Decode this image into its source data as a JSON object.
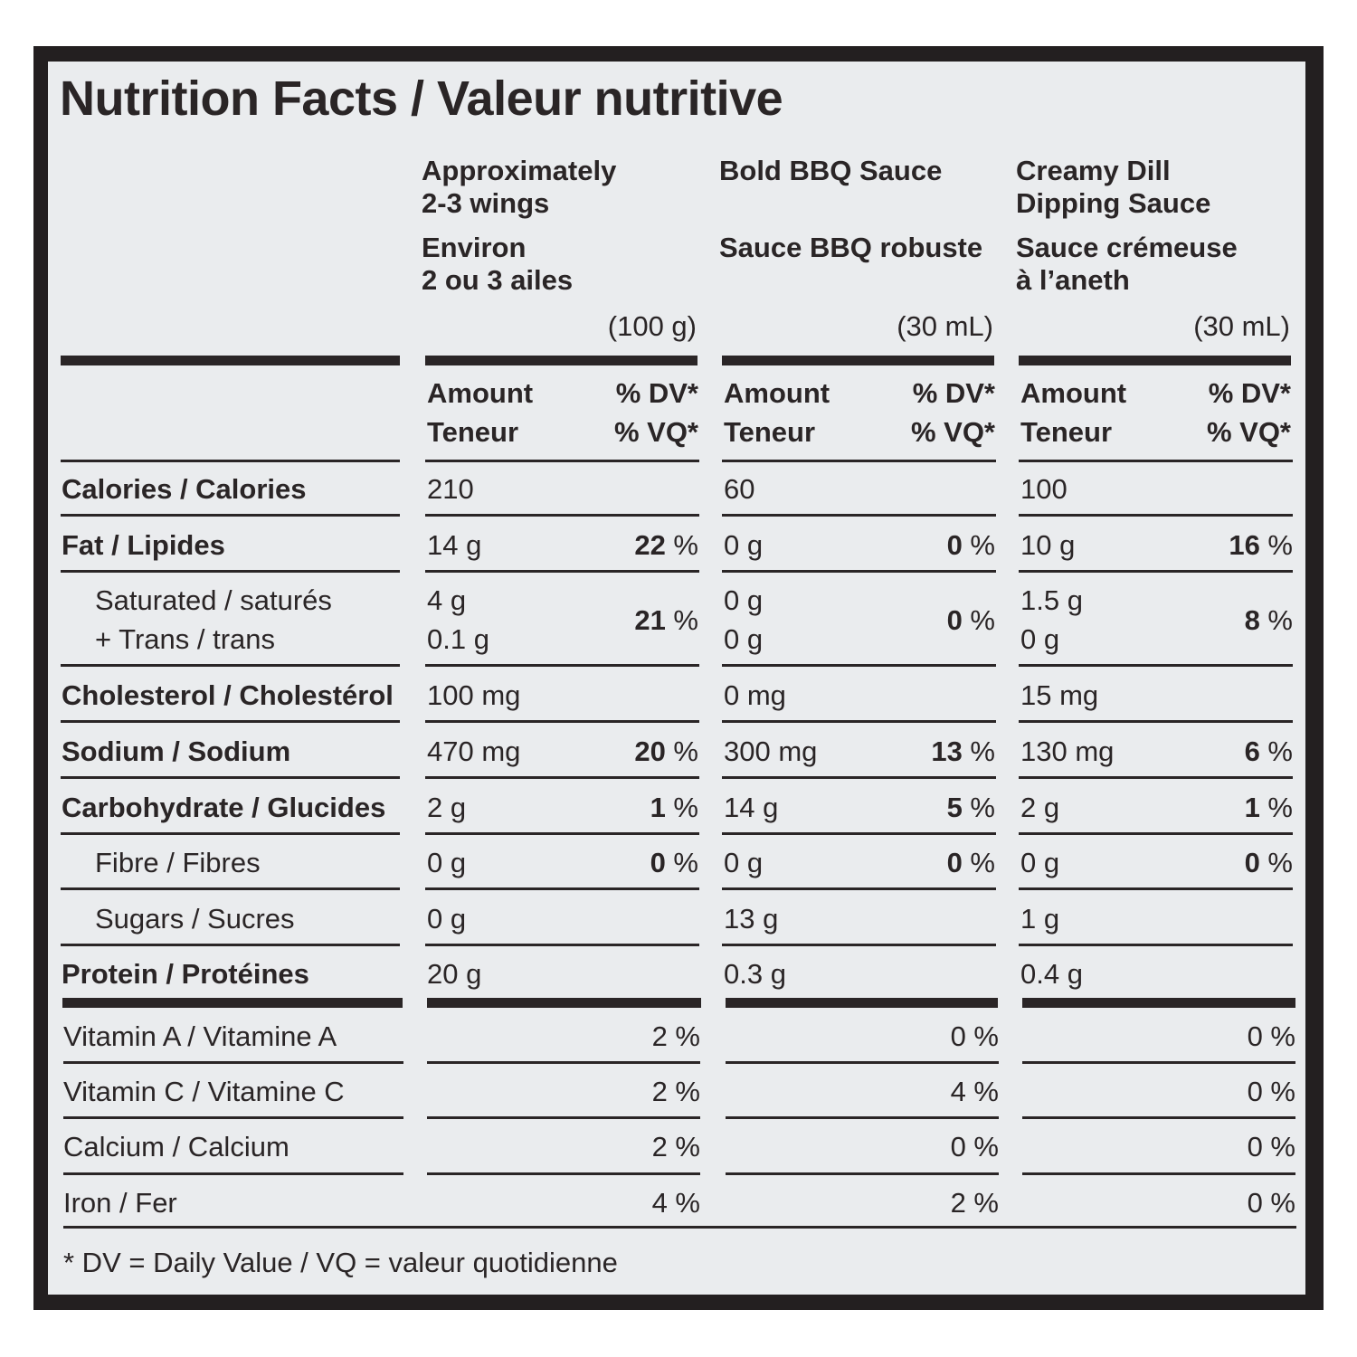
{
  "title": "Nutrition Facts / Valeur nutritive",
  "columns": [
    {
      "name_en": "Approximately\n2-3 wings",
      "name_fr": "Environ\n2 ou 3 ailes",
      "serving": "(100 g)"
    },
    {
      "name_en": "Bold BBQ Sauce",
      "name_fr": "Sauce BBQ robuste",
      "serving": "(30 mL)"
    },
    {
      "name_en": "Creamy Dill\nDipping Sauce",
      "name_fr": "Sauce crémeuse\nà l’aneth",
      "serving": "(30 mL)"
    }
  ],
  "header": {
    "amount": "Amount\nTeneur",
    "dv": "% DV*\n% VQ*"
  },
  "rows": [
    {
      "label": "Calories / Calories",
      "values": [
        {
          "amount": "210",
          "pct": ""
        },
        {
          "amount": "60",
          "pct": ""
        },
        {
          "amount": "100",
          "pct": ""
        }
      ]
    },
    {
      "label": "Fat / Lipides",
      "values": [
        {
          "amount": "14 g",
          "pct": "22"
        },
        {
          "amount": "0 g",
          "pct": "0"
        },
        {
          "amount": "10 g",
          "pct": "16"
        }
      ]
    },
    {
      "label": "Saturated / saturés\n+ Trans / trans",
      "values": [
        {
          "amount": "4 g\n0.1 g",
          "pct": "21"
        },
        {
          "amount": "0 g\n0 g",
          "pct": "0"
        },
        {
          "amount": "1.5 g\n0 g",
          "pct": "8"
        }
      ]
    },
    {
      "label": "Cholesterol / Cholestérol",
      "values": [
        {
          "amount": "100 mg",
          "pct": ""
        },
        {
          "amount": "0 mg",
          "pct": ""
        },
        {
          "amount": "15 mg",
          "pct": ""
        }
      ]
    },
    {
      "label": "Sodium / Sodium",
      "values": [
        {
          "amount": "470 mg",
          "pct": "20"
        },
        {
          "amount": "300 mg",
          "pct": "13"
        },
        {
          "amount": "130 mg",
          "pct": "6"
        }
      ]
    },
    {
      "label": "Carbohydrate / Glucides",
      "values": [
        {
          "amount": "2 g",
          "pct": "1"
        },
        {
          "amount": "14 g",
          "pct": "5"
        },
        {
          "amount": "2 g",
          "pct": "1"
        }
      ]
    },
    {
      "label": "Fibre / Fibres",
      "values": [
        {
          "amount": "0 g",
          "pct": "0"
        },
        {
          "amount": "0 g",
          "pct": "0"
        },
        {
          "amount": "0 g",
          "pct": "0"
        }
      ]
    },
    {
      "label": "Sugars / Sucres",
      "values": [
        {
          "amount": "0 g",
          "pct": ""
        },
        {
          "amount": "13 g",
          "pct": ""
        },
        {
          "amount": "1 g",
          "pct": ""
        }
      ]
    },
    {
      "label": "Protein / Protéines",
      "values": [
        {
          "amount": "20 g",
          "pct": ""
        },
        {
          "amount": "0.3 g",
          "pct": ""
        },
        {
          "amount": "0.4 g",
          "pct": ""
        }
      ]
    }
  ],
  "vitamins": [
    {
      "label": "Vitamin A / Vitamine A",
      "values": [
        "2 %",
        "0 %",
        "0 %"
      ]
    },
    {
      "label": "Vitamin C / Vitamine C",
      "values": [
        "2 %",
        "4 %",
        "0 %"
      ]
    },
    {
      "label": "Calcium / Calcium",
      "values": [
        "2 %",
        "0 %",
        "0 %"
      ]
    },
    {
      "label": "Iron / Fer",
      "values": [
        "4 %",
        "2 %",
        "0 %"
      ]
    }
  ],
  "pct_suffix": " %",
  "footnote": "* DV = Daily Value / VQ = valeur quotidienne"
}
